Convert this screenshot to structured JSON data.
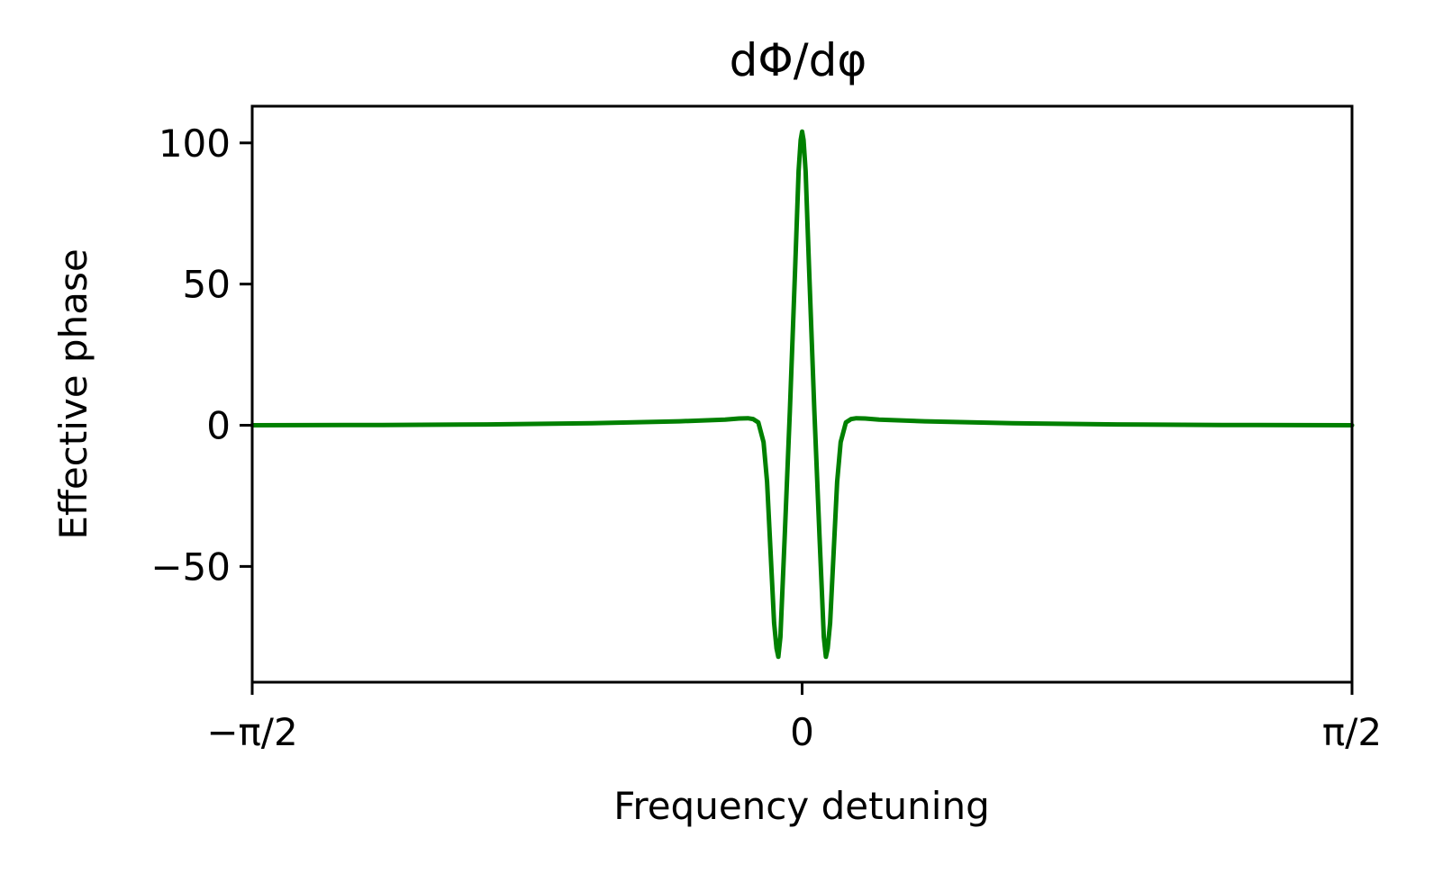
{
  "chart_data": {
    "type": "line",
    "title": "dΦ/dφ",
    "xlabel": "Frequency detuning",
    "ylabel": "Effective phase",
    "xlim": [
      -1.5708,
      1.5708
    ],
    "ylim": [
      -91,
      113
    ],
    "grid": false,
    "x_ticks": [
      {
        "value": -1.5708,
        "label": "−π/2"
      },
      {
        "value": 0,
        "label": "0"
      },
      {
        "value": 1.5708,
        "label": "π/2"
      }
    ],
    "y_ticks": [
      {
        "value": 100,
        "label": "100"
      },
      {
        "value": 50,
        "label": "50"
      },
      {
        "value": 0,
        "label": "0"
      },
      {
        "value": -50,
        "label": "−50"
      }
    ],
    "series": [
      {
        "color": "#008000",
        "points": [
          [
            -1.5708,
            0.0
          ],
          [
            -1.2,
            0.1
          ],
          [
            -0.9,
            0.3
          ],
          [
            -0.6,
            0.7
          ],
          [
            -0.35,
            1.4
          ],
          [
            -0.22,
            2.0
          ],
          [
            -0.18,
            2.4
          ],
          [
            -0.155,
            2.5
          ],
          [
            -0.14,
            2.2
          ],
          [
            -0.125,
            1.0
          ],
          [
            -0.11,
            -6.0
          ],
          [
            -0.1,
            -20.0
          ],
          [
            -0.09,
            -45.0
          ],
          [
            -0.08,
            -70.0
          ],
          [
            -0.073,
            -79.0
          ],
          [
            -0.068,
            -82.0
          ],
          [
            -0.062,
            -75.0
          ],
          [
            -0.05,
            -40.0
          ],
          [
            -0.035,
            5.0
          ],
          [
            -0.02,
            55.0
          ],
          [
            -0.01,
            90.0
          ],
          [
            -0.004,
            101.0
          ],
          [
            0.0,
            104.0
          ],
          [
            0.004,
            101.0
          ],
          [
            0.01,
            90.0
          ],
          [
            0.02,
            55.0
          ],
          [
            0.035,
            5.0
          ],
          [
            0.05,
            -40.0
          ],
          [
            0.062,
            -75.0
          ],
          [
            0.068,
            -82.0
          ],
          [
            0.073,
            -79.0
          ],
          [
            0.08,
            -70.0
          ],
          [
            0.09,
            -45.0
          ],
          [
            0.1,
            -20.0
          ],
          [
            0.11,
            -6.0
          ],
          [
            0.125,
            1.0
          ],
          [
            0.14,
            2.2
          ],
          [
            0.155,
            2.5
          ],
          [
            0.18,
            2.4
          ],
          [
            0.22,
            2.0
          ],
          [
            0.35,
            1.4
          ],
          [
            0.6,
            0.7
          ],
          [
            0.9,
            0.3
          ],
          [
            1.2,
            0.1
          ],
          [
            1.5708,
            0.0
          ]
        ]
      }
    ]
  }
}
